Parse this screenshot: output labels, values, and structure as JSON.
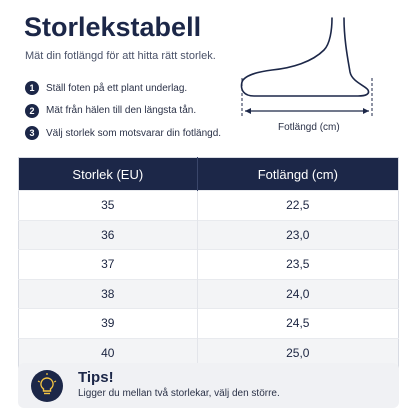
{
  "header": {
    "title": "Storlekstabell",
    "subtitle": "Mät din fotlängd för att hitta rätt storlek."
  },
  "steps": [
    {
      "number": "1",
      "text": "Ställ foten på ett plant underlag."
    },
    {
      "number": "2",
      "text": "Mät från hälen till den längsta tån."
    },
    {
      "number": "3",
      "text": "Välj storlek som motsvarar din fotlängd."
    }
  ],
  "illustration": {
    "label": "Fotlängd (cm)"
  },
  "table": {
    "columns": [
      "Storlek (EU)",
      "Fotlängd (cm)"
    ],
    "rows": [
      [
        "35",
        "22,5"
      ],
      [
        "36",
        "23,0"
      ],
      [
        "37",
        "23,5"
      ],
      [
        "38",
        "24,0"
      ],
      [
        "39",
        "24,5"
      ],
      [
        "40",
        "25,0"
      ]
    ]
  },
  "tips": {
    "title": "Tips!",
    "text": "Ligger du mellan två storlekar, välj den större."
  }
}
